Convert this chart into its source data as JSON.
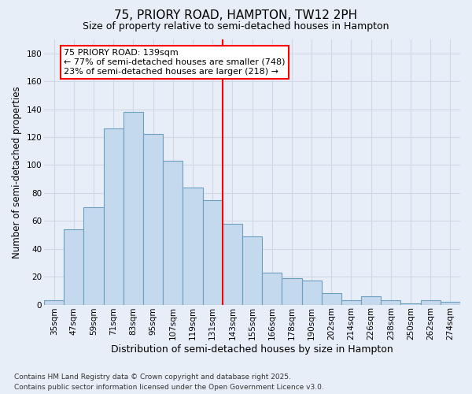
{
  "title": "75, PRIORY ROAD, HAMPTON, TW12 2PH",
  "subtitle": "Size of property relative to semi-detached houses in Hampton",
  "xlabel": "Distribution of semi-detached houses by size in Hampton",
  "ylabel": "Number of semi-detached properties",
  "footnote1": "Contains HM Land Registry data © Crown copyright and database right 2025.",
  "footnote2": "Contains public sector information licensed under the Open Government Licence v3.0.",
  "annotation_title": "75 PRIORY ROAD: 139sqm",
  "annotation_line1": "← 77% of semi-detached houses are smaller (748)",
  "annotation_line2": "23% of semi-detached houses are larger (218) →",
  "bar_labels": [
    "35sqm",
    "47sqm",
    "59sqm",
    "71sqm",
    "83sqm",
    "95sqm",
    "107sqm",
    "119sqm",
    "131sqm",
    "143sqm",
    "155sqm",
    "166sqm",
    "178sqm",
    "190sqm",
    "202sqm",
    "214sqm",
    "226sqm",
    "238sqm",
    "250sqm",
    "262sqm",
    "274sqm"
  ],
  "bar_values": [
    3,
    54,
    70,
    126,
    138,
    122,
    103,
    84,
    75,
    58,
    49,
    23,
    19,
    17,
    8,
    3,
    6,
    3,
    1,
    3,
    2
  ],
  "bar_color": "#c5d9ee",
  "bar_edge_color": "#6a9fc0",
  "vline_index": 8.5,
  "ylim": [
    0,
    190
  ],
  "yticks": [
    0,
    20,
    40,
    60,
    80,
    100,
    120,
    140,
    160,
    180
  ],
  "background_color": "#e8eef7",
  "grid_color": "#d0d8e8",
  "title_fontsize": 11,
  "subtitle_fontsize": 9,
  "tick_fontsize": 7.5,
  "ylabel_fontsize": 8.5,
  "xlabel_fontsize": 9,
  "annotation_fontsize": 8,
  "footnote_fontsize": 6.5
}
